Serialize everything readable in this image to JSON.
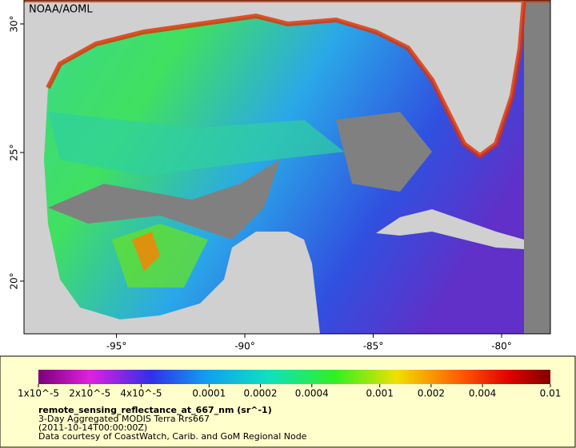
{
  "map": {
    "credit": "NOAA/AOML",
    "xlim": [
      -98.6,
      -78.1
    ],
    "ylim": [
      17.95,
      30.93
    ],
    "xticks": [
      {
        "value": -95,
        "label": "-95°"
      },
      {
        "value": -90,
        "label": "-90°"
      },
      {
        "value": -85,
        "label": "-85°"
      },
      {
        "value": -80,
        "label": "-80°"
      }
    ],
    "yticks": [
      {
        "value": 30,
        "label": "30°"
      },
      {
        "value": 25,
        "label": "25°"
      },
      {
        "value": 20,
        "label": "20°"
      }
    ]
  },
  "legend": {
    "scale": "log",
    "lim": [
      1e-05,
      0.01
    ],
    "ticks": [
      {
        "value": 1e-05,
        "label": "1x10^-5"
      },
      {
        "value": 2e-05,
        "label": "2x10^-5"
      },
      {
        "value": 4e-05,
        "label": "4x10^-5"
      },
      {
        "value": 0.0001,
        "label": "0.0001"
      },
      {
        "value": 0.0002,
        "label": "0.0002"
      },
      {
        "value": 0.0004,
        "label": "0.0004"
      },
      {
        "value": 0.001,
        "label": "0.001"
      },
      {
        "value": 0.002,
        "label": "0.002"
      },
      {
        "value": 0.004,
        "label": "0.004"
      },
      {
        "value": 0.01,
        "label": "0.01"
      }
    ],
    "variable": "remote_sensing_reflectance_at_667_nm (sr^-1)",
    "dataset": "3-Day Aggregated MODIS Terra Rrs667",
    "time": "(2011-10-14T00:00:00Z)",
    "source": "Data courtesy of CoastWatch, Carib. and GoM Regional Node"
  }
}
